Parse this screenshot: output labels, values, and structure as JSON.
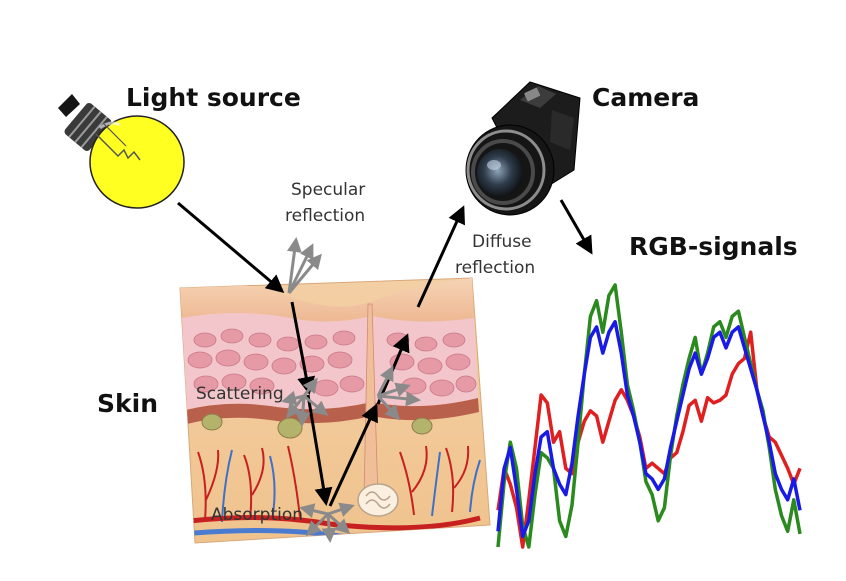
{
  "labels": {
    "light_source": "Light source",
    "camera": "Camera",
    "rgb_signals": "RGB-signals",
    "skin": "Skin",
    "specular_line1": "Specular",
    "specular_line2": "reflection",
    "diffuse_line1": "Diffuse",
    "diffuse_line2": "reflection",
    "scattering": "Scattering",
    "absorption": "Absorption"
  },
  "icons": {
    "bulb": "light-bulb-icon",
    "camera": "camera-icon"
  },
  "colors": {
    "signal_red": "#e02020",
    "signal_green": "#2a8a1e",
    "signal_blue": "#1a1ae6",
    "bulb_yellow": "#ffff22",
    "arrow_black": "#000000",
    "arrow_gray": "#8a8a8a"
  },
  "chart_data": {
    "type": "line",
    "title": "",
    "xlabel": "",
    "ylabel": "",
    "series": [
      {
        "name": "",
        "color": "red",
        "values": [
          0.14,
          0.3,
          0.24,
          0.15,
          0.0,
          0.18,
          0.38,
          0.58,
          0.55,
          0.4,
          0.44,
          0.3,
          0.28,
          0.4,
          0.48,
          0.52,
          0.5,
          0.4,
          0.48,
          0.56,
          0.6,
          0.56,
          0.5,
          0.42,
          0.3,
          0.32,
          0.3,
          0.28,
          0.34,
          0.36,
          0.44,
          0.54,
          0.56,
          0.48,
          0.57,
          0.55,
          0.56,
          0.58,
          0.66,
          0.7,
          0.72,
          0.82,
          0.6,
          0.5,
          0.42,
          0.4,
          0.35,
          0.3,
          0.24,
          0.3
        ]
      },
      {
        "name": "",
        "color": "green",
        "values": [
          0.0,
          0.25,
          0.4,
          0.3,
          0.08,
          0.0,
          0.2,
          0.36,
          0.34,
          0.3,
          0.1,
          0.04,
          0.16,
          0.4,
          0.66,
          0.88,
          0.94,
          0.82,
          0.96,
          1.0,
          0.82,
          0.62,
          0.52,
          0.4,
          0.25,
          0.2,
          0.1,
          0.15,
          0.35,
          0.5,
          0.62,
          0.72,
          0.8,
          0.66,
          0.74,
          0.84,
          0.86,
          0.8,
          0.88,
          0.9,
          0.8,
          0.7,
          0.6,
          0.52,
          0.38,
          0.22,
          0.12,
          0.06,
          0.18,
          0.05
        ]
      },
      {
        "name": "",
        "color": "blue",
        "values": [
          0.06,
          0.3,
          0.38,
          0.22,
          0.04,
          0.1,
          0.28,
          0.42,
          0.44,
          0.3,
          0.24,
          0.2,
          0.32,
          0.5,
          0.66,
          0.8,
          0.84,
          0.74,
          0.82,
          0.86,
          0.74,
          0.58,
          0.5,
          0.4,
          0.28,
          0.26,
          0.22,
          0.26,
          0.38,
          0.48,
          0.58,
          0.68,
          0.74,
          0.66,
          0.72,
          0.8,
          0.82,
          0.76,
          0.82,
          0.84,
          0.76,
          0.68,
          0.6,
          0.5,
          0.4,
          0.28,
          0.22,
          0.18,
          0.26,
          0.14
        ]
      }
    ]
  }
}
